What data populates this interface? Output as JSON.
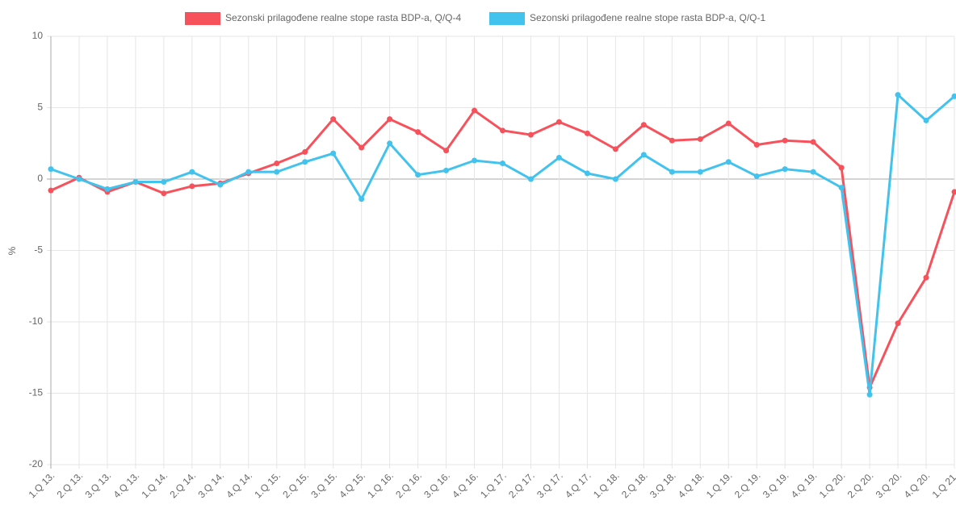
{
  "chart_data": {
    "type": "line",
    "y_label": "%",
    "categories": [
      "1.Q 13.",
      "2.Q 13.",
      "3.Q 13.",
      "4.Q 13.",
      "1.Q 14.",
      "2.Q 14.",
      "3.Q 14.",
      "4.Q 14.",
      "1.Q 15.",
      "2.Q 15.",
      "3.Q 15.",
      "4.Q 15.",
      "1.Q 16.",
      "2.Q 16.",
      "3.Q 16.",
      "4.Q 16.",
      "1.Q 17.",
      "2.Q 17.",
      "3.Q 17.",
      "4.Q 17.",
      "1.Q 18.",
      "2.Q 18.",
      "3.Q 18.",
      "4.Q 18.",
      "1.Q 19.",
      "2.Q 19.",
      "3.Q 19.",
      "4.Q 19.",
      "1.Q 20.",
      "2.Q 20.",
      "3.Q 20.",
      "4.Q 20.",
      "1.Q 21."
    ],
    "series": [
      {
        "name": "Sezonski prilagođene realne stope rasta BDP-a, Q/Q-4",
        "color": "#f7525c",
        "values": [
          -0.8,
          0.1,
          -0.9,
          -0.2,
          -1.0,
          -0.5,
          -0.3,
          0.4,
          1.1,
          1.9,
          4.2,
          2.2,
          4.2,
          3.3,
          2.0,
          4.8,
          3.4,
          3.1,
          4.0,
          3.2,
          2.1,
          3.8,
          2.7,
          2.8,
          3.9,
          2.4,
          2.7,
          2.6,
          0.8,
          -14.6,
          -10.1,
          -6.9,
          -0.9
        ]
      },
      {
        "name": "Sezonski prilagođene realne stope rasta BDP-a, Q/Q-1",
        "color": "#42c3ee",
        "values": [
          0.7,
          0.0,
          -0.7,
          -0.2,
          -0.2,
          0.5,
          -0.4,
          0.5,
          0.5,
          1.2,
          1.8,
          -1.4,
          2.5,
          0.3,
          0.6,
          1.3,
          1.1,
          0.0,
          1.5,
          0.4,
          0.0,
          1.7,
          0.5,
          0.5,
          1.2,
          0.2,
          0.7,
          0.5,
          -0.6,
          -15.1,
          5.9,
          4.1,
          5.8
        ]
      }
    ],
    "ylim": [
      -20,
      10
    ],
    "yticks": [
      10,
      5,
      0,
      -5,
      -10,
      -15,
      -20
    ],
    "grid": true,
    "legend": "top"
  }
}
